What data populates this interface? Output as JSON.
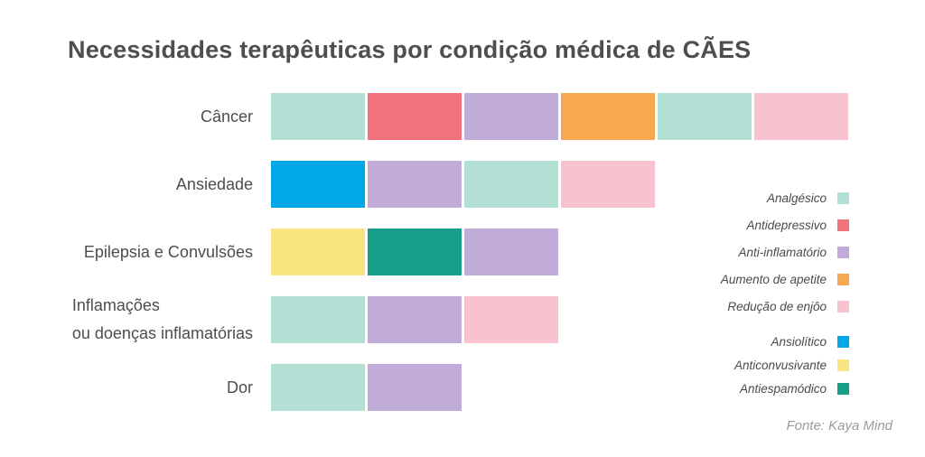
{
  "title": "Necessidades terapêuticas por condição médica de CÃES",
  "source": "Fonte: Kaya Mind",
  "chart_data": {
    "type": "bar",
    "orientation": "horizontal-stacked",
    "title": "Necessidades terapêuticas por condição médica de CÃES",
    "note": "Each colored segment represents one therapeutic need for the condition; all segments have equal width (1 unit).",
    "grid": false,
    "axis": "none",
    "legend_position": "right",
    "categories": [
      "Câncer",
      "Ansiedade",
      "Epilepsia e Convulsões",
      "Inflamações ou doenças inflamatórias",
      "Dor"
    ],
    "rows": [
      {
        "label": "Câncer",
        "segments": [
          "analgesico",
          "antidepressivo",
          "anti_inflamatorio",
          "aumento_apetite",
          "analgesico",
          "reducao_enjoo"
        ],
        "value": 6
      },
      {
        "label": "Ansiedade",
        "segments": [
          "ansiolitico",
          "anti_inflamatorio",
          "analgesico",
          "reducao_enjoo"
        ],
        "value": 4
      },
      {
        "label": "Epilepsia e Convulsões",
        "segments": [
          "anticonvusivante",
          "antiespamodico",
          "anti_inflamatorio"
        ],
        "value": 3
      },
      {
        "label": "Inflamações ou doenças inflamatórias",
        "label_lines": [
          "Inflamações",
          "ou doenças inflamatórias"
        ],
        "segments": [
          "analgesico",
          "anti_inflamatorio",
          "reducao_enjoo"
        ],
        "value": 3
      },
      {
        "label": "Dor",
        "segments": [
          "analgesico",
          "anti_inflamatorio"
        ],
        "value": 2
      }
    ],
    "legend": [
      {
        "key": "analgesico",
        "label": "Analgésico",
        "color": "#b2e0d5"
      },
      {
        "key": "antidepressivo",
        "label": "Antidepressivo",
        "color": "#f0727b"
      },
      {
        "key": "anti_inflamatorio",
        "label": "Anti-inflamatório",
        "color": "#c0abd9"
      },
      {
        "key": "aumento_apetite",
        "label": "Aumento de apetite",
        "color": "#f6a950"
      },
      {
        "key": "reducao_enjoo",
        "label": "Redução de enjôo",
        "color": "#f8c2cf"
      },
      {
        "key": "ansiolitico",
        "label": "Ansiolítico",
        "color": "#00a8e7",
        "group_gap": true
      },
      {
        "key": "anticonvusivante",
        "label": "Anticonvusivante",
        "color": "#fae480"
      },
      {
        "key": "antiespamodico",
        "label": "Antiespamódico",
        "color": "#189e88"
      }
    ]
  }
}
